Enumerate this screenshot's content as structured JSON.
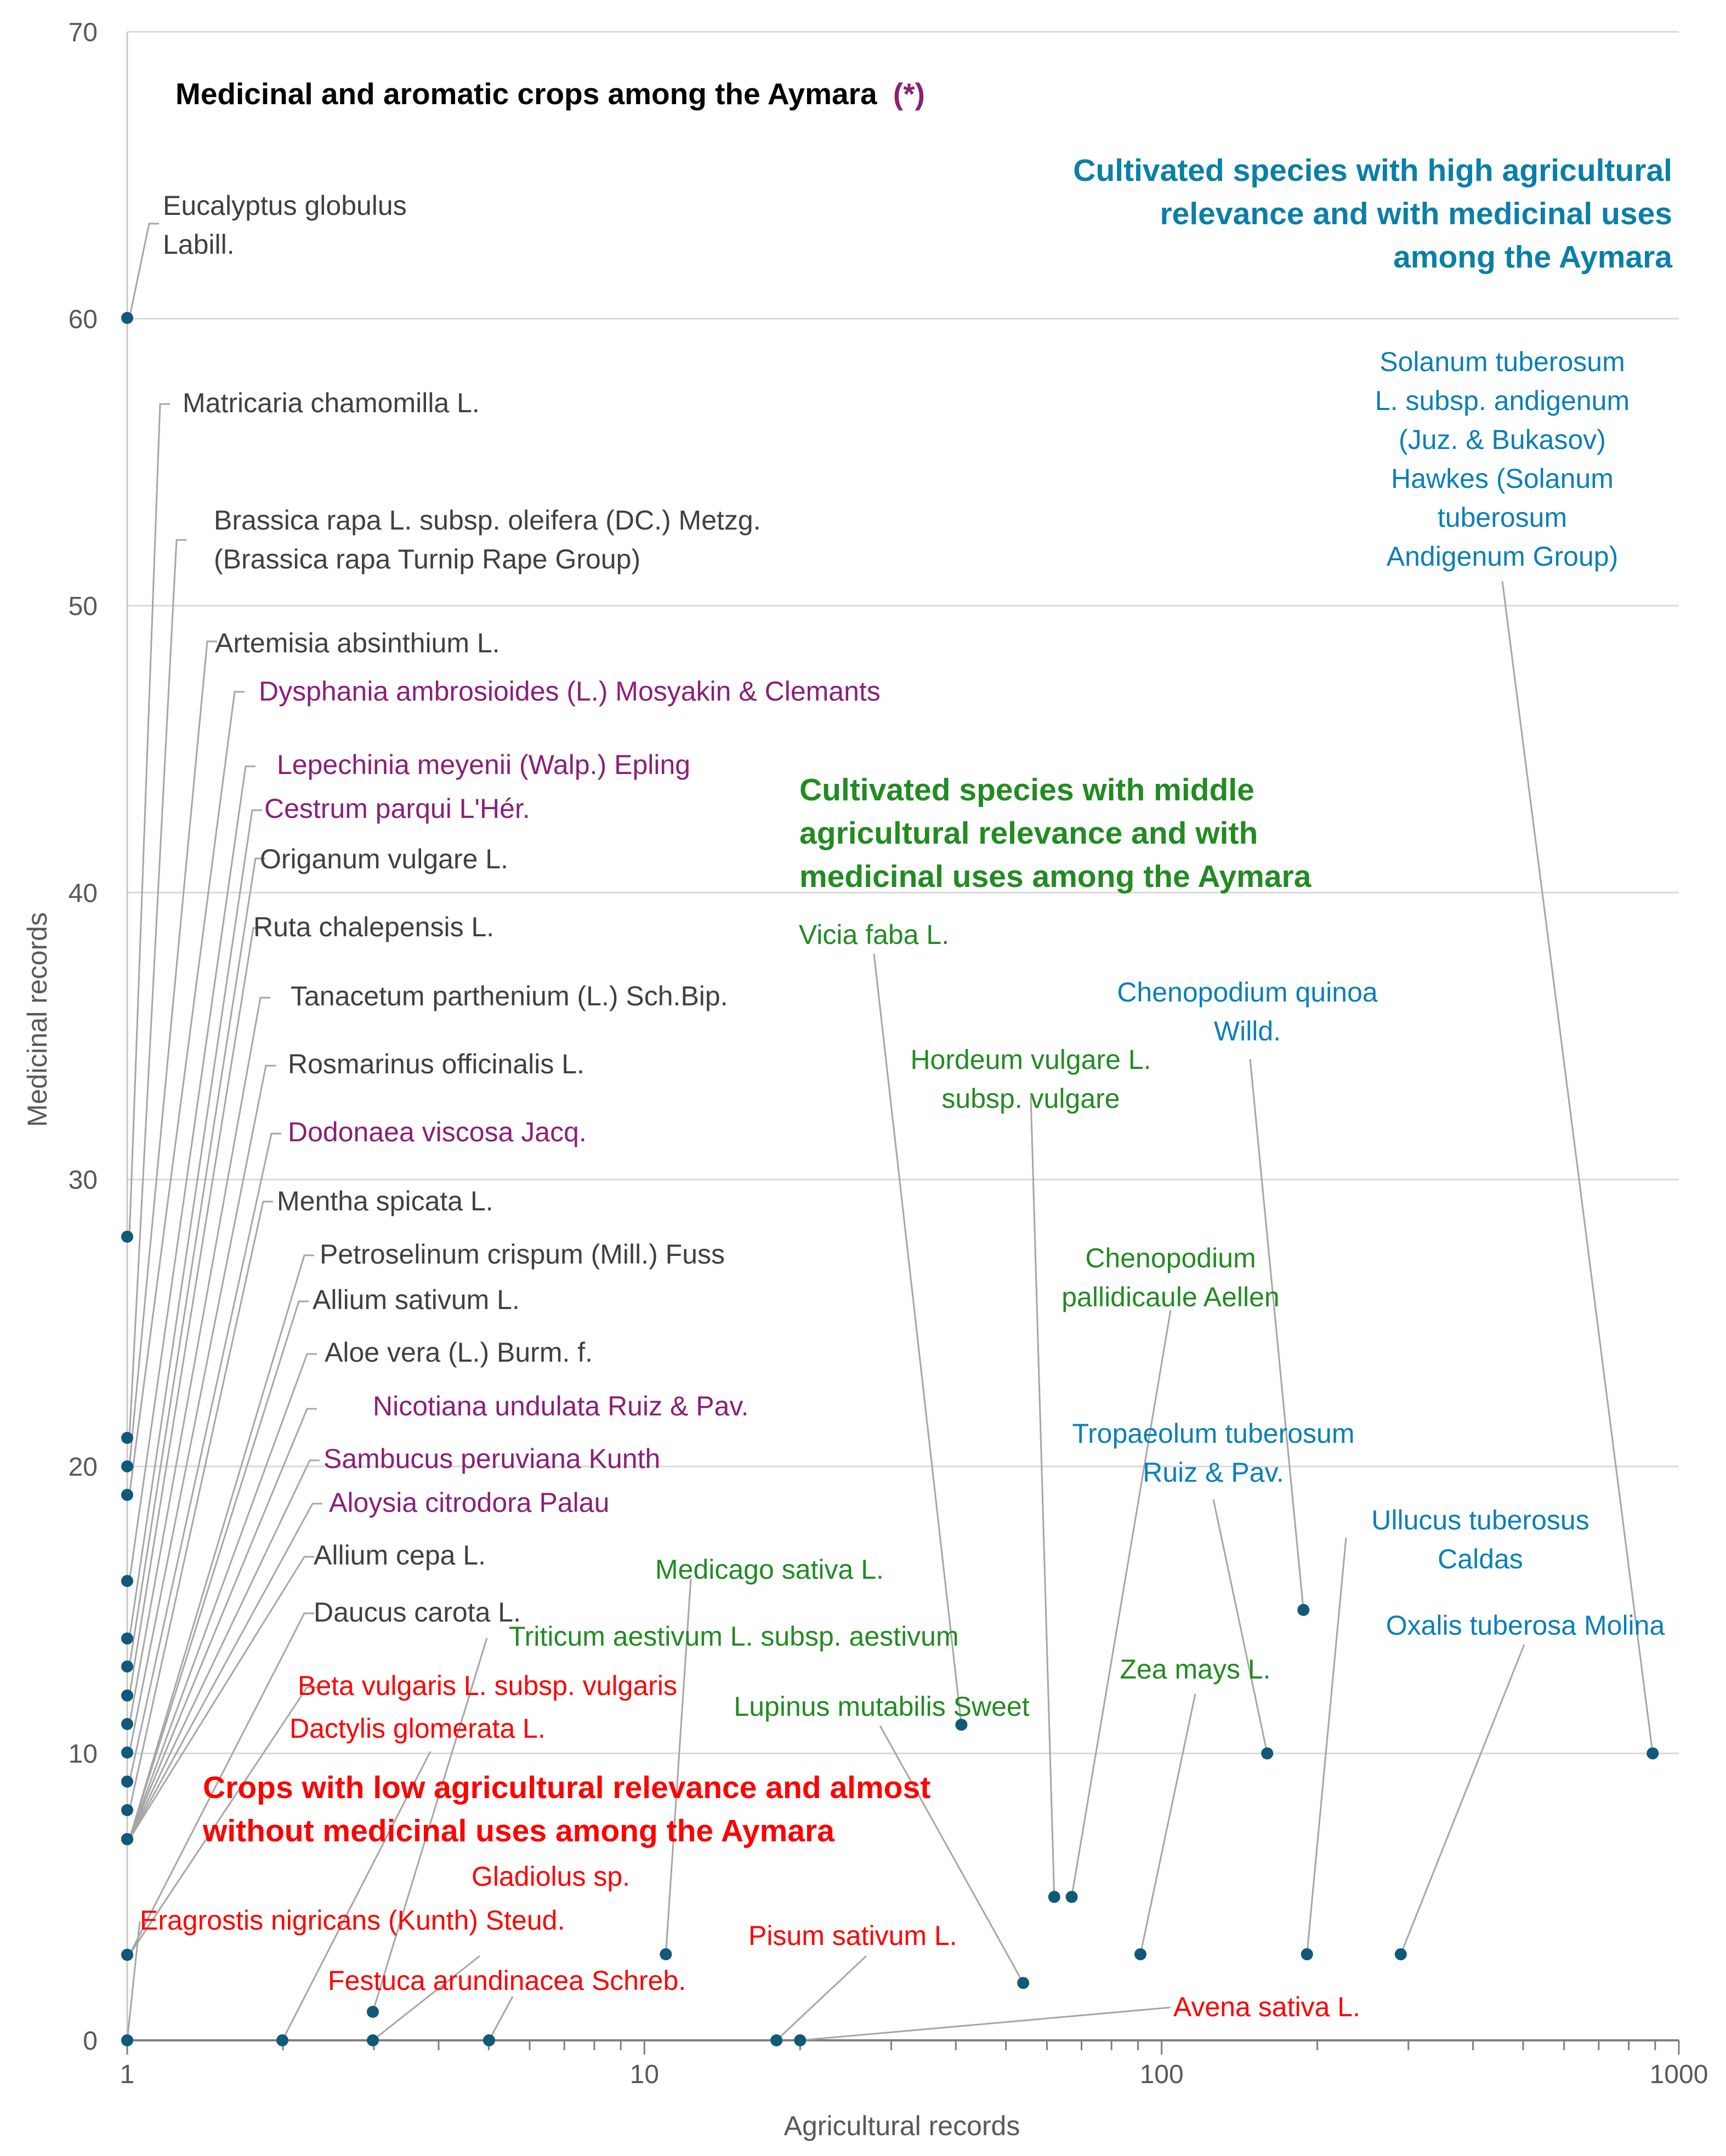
{
  "chart_data": {
    "type": "scatter",
    "title": "Medicinal and aromatic crops among the Aymara",
    "title_marker": "(*)",
    "xlabel": "Agricultural records",
    "ylabel": "Medicinal records",
    "x_scale": "log",
    "xlim": [
      1,
      1000
    ],
    "ylim": [
      0,
      70
    ],
    "x_ticks": [
      "1",
      "10",
      "100",
      "1000"
    ],
    "y_ticks": [
      "0",
      "10",
      "20",
      "30",
      "40",
      "50",
      "60",
      "70"
    ],
    "grid": "horizontal",
    "colors": {
      "point": "#0e5a78",
      "gray_text": "#404040",
      "purple": "#8b1f78",
      "green": "#228b22",
      "blue": "#0a7fb8",
      "red": "#ff0000",
      "teal_heading": "#0a7fa8",
      "leader": "#a6a6a6",
      "grid": "#d9d9d9",
      "axis": "#7f7f7f"
    },
    "group_headings": [
      {
        "id": "high",
        "lines": [
          "Cultivated species with high agricultural",
          "relevance and with medicinal uses",
          "among  the Aymara"
        ],
        "color": "#0a7fa8"
      },
      {
        "id": "middle",
        "lines": [
          "Cultivated species with middle",
          "agricultural relevance and with",
          "medicinal uses among  the Aymara"
        ],
        "color": "#228b22"
      },
      {
        "id": "low",
        "lines": [
          "Crops with low agricultural relevance and almost",
          "without medicinal uses among the Aymara"
        ],
        "color": "#ff0000"
      }
    ],
    "points": [
      {
        "name": "Eucalyptus globulus Labill.",
        "lines": [
          "Eucalyptus globulus",
          "Labill."
        ],
        "x": 1,
        "y": 60,
        "color": "#404040"
      },
      {
        "name": "Matricaria chamomilla L.",
        "lines": [
          "Matricaria chamomilla L."
        ],
        "x": 1,
        "y": 28,
        "color": "#404040"
      },
      {
        "name": "Brassica rapa L. subsp. oleifera (DC.) Metzg. (Brassica rapa Turnip Rape Group)",
        "lines": [
          "Brassica rapa L. subsp. oleifera (DC.) Metzg.",
          "(Brassica rapa Turnip Rape Group)"
        ],
        "x": 1,
        "y": 21,
        "color": "#404040"
      },
      {
        "name": "Artemisia absinthium L.",
        "lines": [
          "Artemisia absinthium L."
        ],
        "x": 1,
        "y": 20,
        "color": "#404040"
      },
      {
        "name": "Dysphania ambrosioides (L.) Mosyakin & Clemants",
        "lines": [
          "Dysphania ambrosioides (L.) Mosyakin & Clemants"
        ],
        "x": 1,
        "y": 19,
        "color": "#8b1f78"
      },
      {
        "name": "Lepechinia meyenii (Walp.) Epling",
        "lines": [
          "Lepechinia meyenii (Walp.) Epling"
        ],
        "x": 1,
        "y": 16,
        "color": "#8b1f78"
      },
      {
        "name": "Cestrum parqui L'Hér.",
        "lines": [
          "Cestrum parqui L'Hér."
        ],
        "x": 1,
        "y": 14,
        "color": "#8b1f78"
      },
      {
        "name": "Origanum vulgare L.",
        "lines": [
          "Origanum vulgare L."
        ],
        "x": 1,
        "y": 13,
        "color": "#404040"
      },
      {
        "name": "Ruta chalepensis L.",
        "lines": [
          "Ruta chalepensis L."
        ],
        "x": 1,
        "y": 12,
        "color": "#404040"
      },
      {
        "name": "Tanacetum parthenium (L.) Sch.Bip.",
        "lines": [
          "Tanacetum parthenium (L.) Sch.Bip."
        ],
        "x": 1,
        "y": 11,
        "color": "#404040"
      },
      {
        "name": "Rosmarinus officinalis L.",
        "lines": [
          "Rosmarinus officinalis L."
        ],
        "x": 1,
        "y": 10,
        "color": "#404040"
      },
      {
        "name": "Dodonaea viscosa Jacq.",
        "lines": [
          "Dodonaea viscosa Jacq."
        ],
        "x": 1,
        "y": 9,
        "color": "#8b1f78"
      },
      {
        "name": "Mentha spicata L.",
        "lines": [
          "Mentha spicata L."
        ],
        "x": 1,
        "y": 8,
        "color": "#404040"
      },
      {
        "name": "Petroselinum crispum (Mill.) Fuss",
        "lines": [
          "Petroselinum crispum (Mill.) Fuss"
        ],
        "x": 1,
        "y": 7,
        "color": "#404040"
      },
      {
        "name": "Allium sativum L.",
        "lines": [
          "Allium sativum L."
        ],
        "x": 1,
        "y": 7,
        "color": "#404040"
      },
      {
        "name": "Aloe vera (L.) Burm. f.",
        "lines": [
          "Aloe vera (L.) Burm. f."
        ],
        "x": 1,
        "y": 7,
        "color": "#404040"
      },
      {
        "name": "Nicotiana undulata Ruiz & Pav.",
        "lines": [
          "Nicotiana undulata Ruiz & Pav."
        ],
        "x": 1,
        "y": 7,
        "color": "#8b1f78"
      },
      {
        "name": "Sambucus peruviana Kunth",
        "lines": [
          "Sambucus peruviana Kunth"
        ],
        "x": 1,
        "y": 7,
        "color": "#8b1f78"
      },
      {
        "name": "Aloysia citrodora Palau",
        "lines": [
          "Aloysia citrodora Palau"
        ],
        "x": 1,
        "y": 7,
        "color": "#8b1f78"
      },
      {
        "name": "Allium cepa L.",
        "lines": [
          "Allium cepa L."
        ],
        "x": 1,
        "y": 7,
        "color": "#404040"
      },
      {
        "name": "Daucus carota L.",
        "lines": [
          "Daucus carota L."
        ],
        "x": 1,
        "y": 3,
        "color": "#404040"
      },
      {
        "name": "Beta vulgaris L. subsp. vulgaris",
        "lines": [
          "Beta vulgaris L. subsp. vulgaris"
        ],
        "x": 1,
        "y": 3,
        "color": "#ff0000"
      },
      {
        "name": "Dactylis glomerata L.",
        "lines": [
          "Dactylis glomerata L."
        ],
        "x": 2,
        "y": 0,
        "color": "#ff0000"
      },
      {
        "name": "Eragrostis nigricans (Kunth) Steud.",
        "lines": [
          "Eragrostis nigricans (Kunth) Steud."
        ],
        "x": 1,
        "y": 0,
        "color": "#ff0000"
      },
      {
        "name": "Triticum aestivum L. subsp. aestivum",
        "lines": [
          "Triticum aestivum L. subsp. aestivum"
        ],
        "x": 3,
        "y": 1,
        "color": "#228b22"
      },
      {
        "name": "Festuca arundinacea Schreb.",
        "lines": [
          "Festuca arundinacea Schreb."
        ],
        "x": 3,
        "y": 0,
        "color": "#ff0000"
      },
      {
        "name": "Gladiolus sp.",
        "lines": [
          "Gladiolus sp."
        ],
        "x": 5,
        "y": 0,
        "color": "#ff0000"
      },
      {
        "name": "Medicago sativa L.",
        "lines": [
          "Medicago sativa L."
        ],
        "x": 11,
        "y": 3,
        "color": "#228b22"
      },
      {
        "name": "Pisum sativum L.",
        "lines": [
          "Pisum sativum L."
        ],
        "x": 18,
        "y": 0,
        "color": "#ff0000"
      },
      {
        "name": "Avena sativa L.",
        "lines": [
          "Avena sativa L."
        ],
        "x": 20,
        "y": 0,
        "color": "#ff0000"
      },
      {
        "name": "Vicia faba L.",
        "lines": [
          "Vicia faba L."
        ],
        "x": 41,
        "y": 11,
        "color": "#228b22"
      },
      {
        "name": "Lupinus mutabilis Sweet",
        "lines": [
          "Lupinus mutabilis Sweet"
        ],
        "x": 54,
        "y": 2,
        "color": "#228b22"
      },
      {
        "name": "Hordeum vulgare L. subsp. vulgare",
        "lines": [
          "Hordeum vulgare L.",
          "subsp. vulgare"
        ],
        "x": 62,
        "y": 5,
        "color": "#228b22"
      },
      {
        "name": "Chenopodium pallidicaule Aellen",
        "lines": [
          "Chenopodium",
          "pallidicaule Aellen"
        ],
        "x": 67,
        "y": 5,
        "color": "#228b22"
      },
      {
        "name": "Zea mays L.",
        "lines": [
          "Zea mays L."
        ],
        "x": 91,
        "y": 3,
        "color": "#228b22"
      },
      {
        "name": "Tropaeolum tuberosum Ruiz & Pav.",
        "lines": [
          "Tropaeolum tuberosum",
          "Ruiz & Pav."
        ],
        "x": 160,
        "y": 10,
        "color": "#0a7fb8"
      },
      {
        "name": "Chenopodium quinoa Willd.",
        "lines": [
          "Chenopodium quinoa",
          "Willd."
        ],
        "x": 188,
        "y": 15,
        "color": "#0a7fb8"
      },
      {
        "name": "Ullucus tuberosus Caldas",
        "lines": [
          "Ullucus tuberosus",
          "Caldas"
        ],
        "x": 191,
        "y": 3,
        "color": "#0a7fb8"
      },
      {
        "name": "Oxalis tuberosa Molina",
        "lines": [
          "Oxalis tuberosa Molina"
        ],
        "x": 290,
        "y": 3,
        "color": "#0a7fb8"
      },
      {
        "name": "Solanum tuberosum L. subsp. andigenum (Juz. & Bukasov) Hawkes (Solanum tuberosum Andigenum Group)",
        "lines": [
          "Solanum tuberosum",
          "L. subsp. andigenum",
          "(Juz. & Bukasov)",
          "Hawkes (Solanum",
          "tuberosum",
          "Andigenum Group)"
        ],
        "x": 890,
        "y": 10,
        "color": "#0a7fb8"
      }
    ]
  }
}
